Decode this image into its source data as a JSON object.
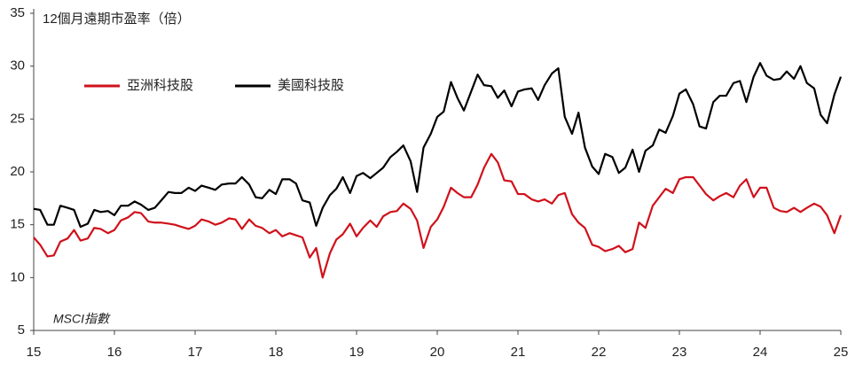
{
  "chart_data": {
    "type": "line",
    "y_label": "12個月遠期市盈率（倍）",
    "annotation": "MSCI指數",
    "legend": "upper left",
    "grid": false,
    "xlim": [
      15,
      25
    ],
    "xticks": [
      15,
      16,
      17,
      18,
      19,
      20,
      21,
      22,
      23,
      24,
      25
    ],
    "ylim": [
      5,
      35
    ],
    "yticks": [
      5,
      10,
      15,
      20,
      25,
      30,
      35
    ],
    "x": [
      15,
      15.08,
      15.17,
      15.25,
      15.33,
      15.42,
      15.5,
      15.58,
      15.67,
      15.75,
      15.83,
      15.92,
      16,
      16.08,
      16.17,
      16.25,
      16.33,
      16.42,
      16.5,
      16.58,
      16.67,
      16.75,
      16.83,
      16.92,
      17,
      17.08,
      17.17,
      17.25,
      17.33,
      17.42,
      17.5,
      17.58,
      17.67,
      17.75,
      17.83,
      17.92,
      18,
      18.08,
      18.17,
      18.25,
      18.33,
      18.42,
      18.5,
      18.58,
      18.67,
      18.75,
      18.83,
      18.92,
      19,
      19.08,
      19.17,
      19.25,
      19.33,
      19.42,
      19.5,
      19.58,
      19.67,
      19.75,
      19.83,
      19.92,
      20,
      20.08,
      20.17,
      20.25,
      20.33,
      20.42,
      20.5,
      20.58,
      20.67,
      20.75,
      20.83,
      20.92,
      21,
      21.08,
      21.17,
      21.25,
      21.33,
      21.42,
      21.5,
      21.58,
      21.67,
      21.75,
      21.83,
      21.92,
      22,
      22.08,
      22.17,
      22.25,
      22.33,
      22.42,
      22.5,
      22.58,
      22.67,
      22.75,
      22.83,
      22.92,
      23,
      23.08,
      23.17,
      23.25,
      23.33,
      23.42,
      23.5,
      23.58,
      23.67,
      23.75,
      23.83,
      23.92,
      24,
      24.08,
      24.17,
      24.25,
      24.33,
      24.42,
      24.5,
      24.58,
      24.67,
      24.75,
      24.83,
      24.92,
      25
    ],
    "series": [
      {
        "name": "亞洲科技股",
        "color": "#d0111b",
        "values": [
          13.8,
          13.1,
          12.0,
          12.1,
          13.4,
          13.7,
          14.5,
          13.5,
          13.7,
          14.7,
          14.6,
          14.2,
          14.5,
          15.4,
          15.7,
          16.2,
          16.1,
          15.3,
          15.2,
          15.2,
          15.1,
          15.0,
          14.8,
          14.6,
          14.9,
          15.5,
          15.3,
          15.0,
          15.2,
          15.6,
          15.5,
          14.6,
          15.5,
          14.9,
          14.7,
          14.2,
          14.5,
          13.9,
          14.2,
          14.0,
          13.8,
          11.9,
          12.8,
          10.0,
          12.3,
          13.6,
          14.1,
          15.1,
          13.9,
          14.7,
          15.4,
          14.8,
          15.8,
          16.2,
          16.3,
          17.0,
          16.5,
          15.4,
          12.8,
          14.8,
          15.5,
          16.7,
          18.5,
          18.0,
          17.6,
          17.6,
          18.8,
          20.4,
          21.7,
          20.9,
          19.2,
          19.1,
          17.9,
          17.9,
          17.4,
          17.2,
          17.4,
          17.0,
          17.8,
          18.0,
          16.0,
          15.2,
          14.7,
          13.1,
          12.9,
          12.5,
          12.7,
          13.0,
          12.4,
          12.7,
          15.2,
          14.7,
          16.8,
          17.6,
          18.4,
          18.0,
          19.3,
          19.5,
          19.5,
          18.7,
          17.9,
          17.3,
          17.7,
          18.0,
          17.6,
          18.7,
          19.3,
          17.6,
          18.5,
          18.5,
          16.6,
          16.3,
          16.2,
          16.6,
          16.2,
          16.6,
          17.0,
          16.7,
          15.9,
          14.2,
          15.9
        ]
      },
      {
        "name": "美國科技股",
        "color": "#000000",
        "values": [
          16.5,
          16.4,
          15.0,
          15.0,
          16.8,
          16.6,
          16.4,
          14.8,
          15.1,
          16.4,
          16.2,
          16.3,
          15.9,
          16.8,
          16.8,
          17.2,
          16.9,
          16.4,
          16.6,
          17.3,
          18.1,
          18.0,
          18.0,
          18.5,
          18.2,
          18.7,
          18.5,
          18.3,
          18.8,
          18.9,
          18.9,
          19.5,
          18.8,
          17.6,
          17.5,
          18.3,
          17.9,
          19.3,
          19.3,
          18.9,
          17.3,
          17.1,
          14.9,
          16.6,
          17.8,
          18.4,
          19.5,
          18.0,
          19.6,
          19.9,
          19.4,
          19.9,
          20.4,
          21.4,
          21.9,
          22.5,
          21.0,
          18.1,
          22.3,
          23.6,
          25.2,
          25.7,
          28.5,
          27.0,
          25.8,
          27.6,
          29.2,
          28.2,
          28.1,
          27.0,
          27.7,
          26.2,
          27.6,
          27.8,
          27.9,
          26.8,
          28.2,
          29.3,
          29.8,
          25.2,
          23.6,
          25.6,
          22.3,
          20.5,
          19.8,
          21.7,
          21.4,
          19.9,
          20.4,
          22.1,
          20.0,
          22.0,
          22.5,
          24.0,
          23.7,
          25.3,
          27.4,
          27.8,
          26.4,
          24.3,
          24.1,
          26.6,
          27.2,
          27.2,
          28.4,
          28.6,
          26.6,
          29.0,
          30.3,
          29.1,
          28.7,
          28.8,
          29.5,
          28.8,
          30.0,
          28.4,
          27.9,
          25.4,
          24.6,
          27.3,
          29.0
        ]
      }
    ]
  }
}
